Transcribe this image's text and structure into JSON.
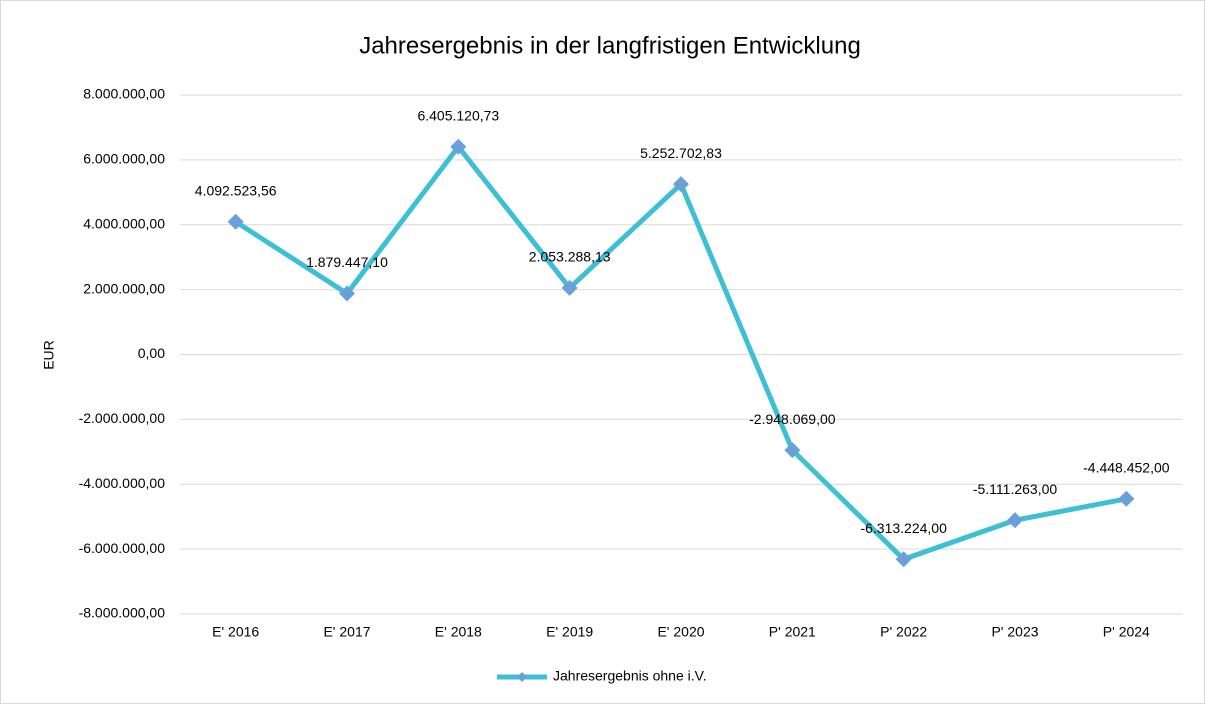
{
  "chart_data": {
    "type": "line",
    "title": "Jahresergebnis in der langfristigen Entwicklung",
    "y_label": "EUR",
    "categories": [
      "E' 2016",
      "E' 2017",
      "E' 2018",
      "E' 2019",
      "E' 2020",
      "P' 2021",
      "P' 2022",
      "P' 2023",
      "P' 2024"
    ],
    "series": [
      {
        "name": "Jahresergebnis ohne i.V.",
        "color": "#3ec0d4",
        "marker_color": "#6a9fd8",
        "values": [
          4092523.56,
          1879447.1,
          6405120.73,
          2053288.13,
          5252702.83,
          -2948069.0,
          -6313224.0,
          -5111263.0,
          -4448452.0
        ],
        "value_labels": [
          "4.092.523,56",
          "1.879.447,10",
          "6.405.120,73",
          "2.053.288,13",
          "5.252.702,83",
          "-2.948.069,00",
          "-6.313.224,00",
          "-5.111.263,00",
          "-4.448.452,00"
        ]
      }
    ],
    "ylim": [
      -8000000,
      8000000
    ],
    "yticks": [
      {
        "value": -8000000,
        "label": "-8.000.000,00"
      },
      {
        "value": -6000000,
        "label": "-6.000.000,00"
      },
      {
        "value": -4000000,
        "label": "-4.000.000,00"
      },
      {
        "value": -2000000,
        "label": "-2.000.000,00"
      },
      {
        "value": 0,
        "label": "0,00"
      },
      {
        "value": 2000000,
        "label": "2.000.000,00"
      },
      {
        "value": 4000000,
        "label": "4.000.000,00"
      },
      {
        "value": 6000000,
        "label": "6.000.000,00"
      },
      {
        "value": 8000000,
        "label": "8.000.000,00"
      }
    ],
    "grid": true,
    "legend": "bottom"
  }
}
